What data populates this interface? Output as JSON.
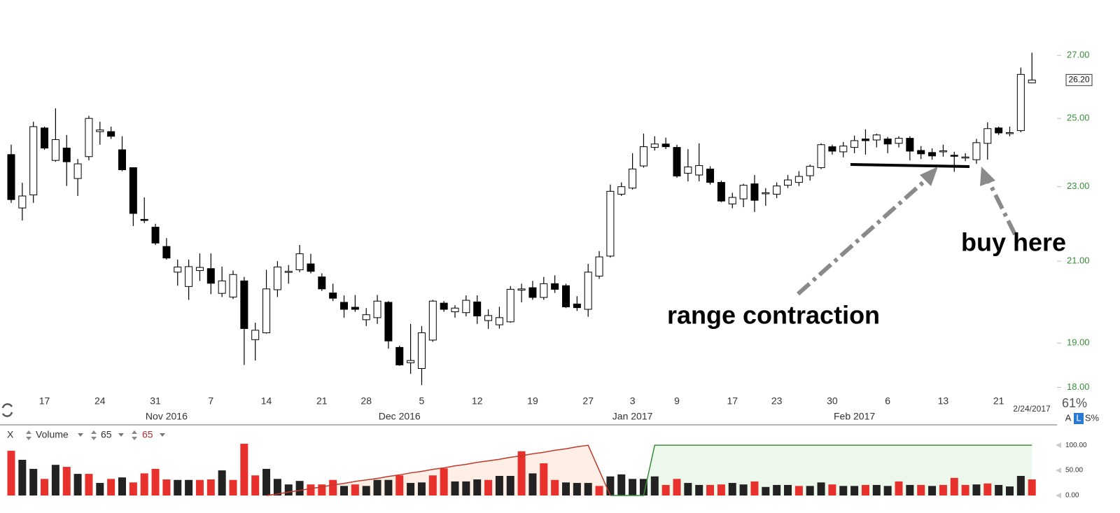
{
  "chart_data": {
    "type": "candlestick",
    "x": [
      "2016-10-12",
      "2016-10-13",
      "2016-10-14",
      "2016-10-17",
      "2016-10-18",
      "2016-10-19",
      "2016-10-20",
      "2016-10-21",
      "2016-10-24",
      "2016-10-25",
      "2016-10-26",
      "2016-10-27",
      "2016-10-28",
      "2016-10-31",
      "2016-11-01",
      "2016-11-02",
      "2016-11-03",
      "2016-11-04",
      "2016-11-07",
      "2016-11-08",
      "2016-11-09",
      "2016-11-10",
      "2016-11-11",
      "2016-11-14",
      "2016-11-15",
      "2016-11-16",
      "2016-11-17",
      "2016-11-18",
      "2016-11-21",
      "2016-11-22",
      "2016-11-23",
      "2016-11-25",
      "2016-11-28",
      "2016-11-29",
      "2016-11-30",
      "2016-12-01",
      "2016-12-02",
      "2016-12-05",
      "2016-12-06",
      "2016-12-07",
      "2016-12-08",
      "2016-12-09",
      "2016-12-12",
      "2016-12-13",
      "2016-12-14",
      "2016-12-15",
      "2016-12-16",
      "2016-12-19",
      "2016-12-20",
      "2016-12-21",
      "2016-12-22",
      "2016-12-23",
      "2016-12-27",
      "2016-12-28",
      "2016-12-29",
      "2016-12-30",
      "2017-01-03",
      "2017-01-04",
      "2017-01-05",
      "2017-01-06",
      "2017-01-09",
      "2017-01-10",
      "2017-01-11",
      "2017-01-12",
      "2017-01-13",
      "2017-01-17",
      "2017-01-18",
      "2017-01-19",
      "2017-01-20",
      "2017-01-23",
      "2017-01-24",
      "2017-01-25",
      "2017-01-26",
      "2017-01-27",
      "2017-01-30",
      "2017-01-31",
      "2017-02-01",
      "2017-02-02",
      "2017-02-03",
      "2017-02-06",
      "2017-02-07",
      "2017-02-08",
      "2017-02-09",
      "2017-02-10",
      "2017-02-13",
      "2017-02-14",
      "2017-02-15",
      "2017-02-16",
      "2017-02-17",
      "2017-02-21",
      "2017-02-22",
      "2017-02-23",
      "2017-02-24"
    ],
    "open": [
      23.92,
      22.41,
      22.77,
      24.71,
      23.75,
      24.11,
      23.23,
      23.86,
      24.6,
      24.6,
      24.06,
      23.54,
      22.1,
      21.89,
      21.38,
      20.72,
      20.36,
      20.76,
      20.81,
      20.19,
      20.1,
      20.5,
      19.08,
      19.24,
      20.28,
      20.72,
      20.78,
      20.93,
      20.6,
      20.2,
      19.97,
      19.85,
      19.55,
      19.6,
      19.97,
      18.9,
      18.55,
      18.42,
      19.07,
      19.95,
      19.74,
      19.72,
      19.98,
      19.53,
      19.43,
      19.5,
      20.27,
      20.33,
      20.09,
      20.43,
      20.38,
      19.93,
      19.8,
      20.62,
      21.13,
      22.79,
      22.96,
      23.59,
      24.13,
      24.23,
      24.13,
      23.38,
      23.33,
      23.5,
      23.12,
      22.52,
      22.66,
      23.08,
      22.8,
      22.79,
      23.04,
      23.12,
      23.31,
      23.54,
      24.15,
      24.0,
      24.13,
      24.38,
      24.35,
      24.38,
      24.25,
      24.4,
      24.04,
      23.98,
      24.02,
      23.9,
      23.84,
      23.77,
      24.25,
      24.71,
      24.55,
      24.63,
      26.11
    ],
    "high": [
      24.21,
      23.11,
      24.9,
      24.75,
      25.31,
      24.5,
      23.79,
      25.08,
      24.9,
      24.75,
      24.46,
      23.54,
      22.7,
      21.98,
      21.6,
      21.04,
      21.04,
      21.2,
      21.2,
      20.86,
      20.76,
      20.6,
      19.48,
      20.78,
      21.0,
      20.9,
      21.42,
      21.19,
      20.69,
      20.43,
      20.14,
      20.15,
      19.83,
      20.15,
      20.0,
      18.94,
      19.45,
      19.4,
      20.03,
      20.0,
      19.9,
      20.14,
      20.14,
      19.8,
      19.86,
      20.37,
      20.43,
      20.5,
      20.6,
      20.64,
      20.43,
      20.12,
      20.93,
      21.26,
      23.06,
      23.12,
      23.96,
      24.54,
      24.46,
      24.42,
      24.21,
      24.08,
      24.25,
      23.58,
      23.17,
      22.83,
      23.08,
      23.33,
      22.96,
      23.12,
      23.33,
      23.44,
      23.63,
      24.25,
      24.21,
      24.29,
      24.48,
      24.67,
      24.54,
      24.44,
      24.46,
      24.46,
      24.17,
      24.1,
      24.21,
      24.0,
      23.96,
      24.38,
      24.88,
      24.75,
      24.75,
      26.6,
      27.09
    ],
    "low": [
      22.55,
      22.07,
      22.55,
      24.06,
      23.71,
      23.02,
      22.74,
      23.75,
      24.21,
      24.38,
      23.44,
      21.92,
      22.0,
      21.42,
      21.04,
      20.38,
      20.03,
      20.5,
      20.17,
      20.1,
      20.05,
      18.5,
      18.6,
      19.22,
      20.1,
      20.43,
      20.72,
      20.69,
      20.25,
      20.0,
      19.6,
      19.74,
      19.4,
      19.45,
      18.87,
      18.48,
      18.3,
      18.05,
      19.03,
      19.74,
      19.6,
      19.63,
      19.45,
      19.33,
      19.34,
      19.48,
      19.97,
      20.03,
      20.03,
      20.2,
      19.83,
      19.76,
      19.62,
      20.55,
      21.09,
      22.74,
      22.92,
      23.54,
      24.04,
      24.08,
      23.25,
      23.15,
      23.15,
      23.06,
      22.57,
      22.4,
      22.43,
      22.3,
      22.47,
      22.68,
      22.96,
      23.02,
      23.17,
      23.5,
      23.92,
      23.84,
      23.96,
      23.92,
      24.13,
      23.96,
      24.13,
      23.75,
      23.79,
      23.77,
      23.86,
      23.42,
      23.73,
      23.65,
      23.77,
      24.5,
      24.46,
      24.58,
      26.11
    ],
    "close": [
      22.64,
      22.74,
      24.75,
      24.11,
      24.36,
      23.71,
      23.65,
      25.0,
      24.65,
      24.46,
      23.48,
      22.26,
      22.07,
      21.47,
      21.08,
      20.85,
      20.86,
      20.84,
      20.44,
      20.5,
      20.66,
      19.34,
      19.3,
      20.3,
      20.85,
      20.74,
      21.19,
      20.74,
      20.3,
      20.07,
      19.8,
      19.8,
      19.67,
      20.0,
      19.05,
      18.5,
      18.6,
      19.24,
      20.0,
      19.8,
      19.83,
      20.02,
      19.64,
      19.65,
      19.6,
      20.29,
      20.3,
      20.09,
      20.43,
      20.29,
      19.86,
      19.84,
      20.72,
      21.11,
      22.87,
      23.0,
      23.5,
      24.15,
      24.23,
      24.15,
      23.3,
      23.56,
      23.6,
      23.12,
      22.6,
      22.7,
      23.04,
      22.62,
      22.83,
      23.02,
      23.19,
      23.29,
      23.58,
      24.21,
      24.02,
      24.17,
      24.33,
      24.33,
      24.5,
      24.23,
      24.4,
      24.02,
      23.94,
      23.88,
      24.03,
      23.89,
      23.85,
      24.27,
      24.69,
      24.56,
      24.57,
      26.38,
      26.2
    ],
    "up_color": "#ffffff",
    "down_color": "#000000",
    "log_scale": true,
    "ylim": [
      17.9,
      28.4
    ],
    "yticks": [
      {
        "value": 18,
        "label": "18.00"
      },
      {
        "value": 19,
        "label": "19.00"
      },
      {
        "value": 21,
        "label": "21.00"
      },
      {
        "value": 23,
        "label": "23.00"
      },
      {
        "value": 25,
        "label": "25.00"
      },
      {
        "value": 27,
        "label": "27.00"
      }
    ],
    "last_price": {
      "value": 26.2,
      "label": "26.20"
    },
    "xticks": [
      {
        "value": "2016-10-17",
        "label": "17"
      },
      {
        "value": "2016-10-24",
        "label": "24"
      },
      {
        "value": "2016-10-31",
        "label": "31"
      },
      {
        "value": "2016-11-07",
        "label": "7"
      },
      {
        "value": "2016-11-14",
        "label": "14"
      },
      {
        "value": "2016-11-21",
        "label": "21"
      },
      {
        "value": "2016-11-28",
        "label": "28"
      },
      {
        "value": "2016-12-05",
        "label": "5"
      },
      {
        "value": "2016-12-12",
        "label": "12"
      },
      {
        "value": "2016-12-19",
        "label": "19"
      },
      {
        "value": "2016-12-27",
        "label": "27"
      },
      {
        "value": "2017-01-03",
        "label": "3"
      },
      {
        "value": "2017-01-09",
        "label": "9"
      },
      {
        "value": "2017-01-17",
        "label": "17"
      },
      {
        "value": "2017-01-23",
        "label": "23"
      },
      {
        "value": "2017-01-30",
        "label": "30"
      },
      {
        "value": "2017-02-06",
        "label": "6"
      },
      {
        "value": "2017-02-13",
        "label": "13"
      },
      {
        "value": "2017-02-21",
        "label": "21"
      }
    ],
    "month_ticks": [
      {
        "value": "2016-11-01",
        "label": "Nov 2016"
      },
      {
        "value": "2016-12-01",
        "label": "Dec 2016"
      },
      {
        "value": "2017-01-03",
        "label": "Jan 2017"
      },
      {
        "value": "2017-02-01",
        "label": "Feb 2017"
      }
    ],
    "date_label": "2/24/2017",
    "annotations": [
      "range contraction",
      "buy here"
    ],
    "volume": {
      "name": "Volume",
      "values": [
        89,
        71,
        53,
        33,
        61,
        57,
        43,
        43,
        25,
        33,
        36,
        26,
        44,
        53,
        32,
        31,
        31,
        31,
        32,
        50,
        31,
        103,
        40,
        53,
        33,
        22,
        29,
        22,
        22,
        31,
        19,
        22,
        19,
        31,
        31,
        40,
        25,
        26,
        40,
        54,
        28,
        28,
        32,
        31,
        39,
        39,
        88,
        44,
        64,
        31,
        26,
        25,
        25,
        19,
        38,
        42,
        33,
        33,
        38,
        21,
        33,
        25,
        21,
        21,
        22,
        25,
        22,
        28,
        17,
        21,
        21,
        19,
        19,
        26,
        22,
        19,
        19,
        21,
        21,
        19,
        28,
        21,
        21,
        19,
        21,
        35,
        21,
        22,
        24,
        21,
        18,
        39,
        32
      ],
      "colors": [
        "#e8302c",
        "#222222",
        "#222222",
        "#e8302c",
        "#222222",
        "#e8302c",
        "#222222",
        "#e8302c",
        "#222222",
        "#e8302c",
        "#222222",
        "#e8302c",
        "#e8302c",
        "#e8302c",
        "#e8302c",
        "#222222",
        "#222222",
        "#e8302c",
        "#e8302c",
        "#222222",
        "#e8302c",
        "#e8302c",
        "#e8302c",
        "#222222",
        "#222222",
        "#222222",
        "#222222",
        "#e8302c",
        "#e8302c",
        "#e8302c",
        "#222222",
        "#e8302c",
        "#222222",
        "#222222",
        "#222222",
        "#e8302c",
        "#222222",
        "#222222",
        "#e8302c",
        "#e8302c",
        "#222222",
        "#222222",
        "#222222",
        "#e8302c",
        "#222222",
        "#222222",
        "#e8302c",
        "#222222",
        "#e8302c",
        "#e8302c",
        "#222222",
        "#222222",
        "#222222",
        "#e8302c",
        "#222222",
        "#222222",
        "#222222",
        "#222222",
        "#222222",
        "#e8302c",
        "#e8302c",
        "#222222",
        "#222222",
        "#e8302c",
        "#e8302c",
        "#222222",
        "#222222",
        "#e8302c",
        "#222222",
        "#222222",
        "#222222",
        "#e8302c",
        "#222222",
        "#222222",
        "#e8302c",
        "#222222",
        "#222222",
        "#e8302c",
        "#222222",
        "#222222",
        "#e8302c",
        "#222222",
        "#e8302c",
        "#222222",
        "#e8302c",
        "#e8302c",
        "#e8302c",
        "#222222",
        "#e8302c",
        "#222222",
        "#222222",
        "#222222",
        "#e8302c"
      ],
      "ylim": [
        0,
        110
      ],
      "yticks": [
        {
          "value": 0,
          "label": "0.00"
        },
        {
          "value": 50,
          "label": "50.00"
        },
        {
          "value": 100,
          "label": "100.00"
        }
      ]
    },
    "indicator": {
      "params": [
        "65",
        "65"
      ],
      "series": [
        {
          "color": "#c0392b",
          "fill": "#fdeee6",
          "values": [
            null,
            null,
            null,
            null,
            null,
            null,
            null,
            null,
            null,
            null,
            null,
            null,
            null,
            null,
            null,
            null,
            null,
            null,
            null,
            null,
            null,
            null,
            null,
            0,
            3,
            7,
            10,
            14,
            17,
            21,
            24,
            28,
            31,
            34,
            38,
            41,
            45,
            48,
            52,
            55,
            59,
            62,
            66,
            69,
            72,
            76,
            79,
            83,
            86,
            90,
            93,
            97,
            100,
            50,
            0,
            null,
            null,
            null,
            null,
            null,
            null,
            null,
            null,
            null,
            null,
            null,
            null,
            null,
            null,
            null,
            null,
            null,
            null,
            null,
            null,
            null,
            null,
            null,
            null,
            null,
            null,
            null,
            null,
            null,
            null,
            null,
            null,
            null,
            null,
            null,
            null,
            null,
            null
          ]
        },
        {
          "color": "#3a8c3a",
          "fill": "#ecf8ec",
          "values": [
            null,
            null,
            null,
            null,
            null,
            null,
            null,
            null,
            null,
            null,
            null,
            null,
            null,
            null,
            null,
            null,
            null,
            null,
            null,
            null,
            null,
            null,
            null,
            null,
            null,
            null,
            null,
            null,
            null,
            null,
            null,
            null,
            null,
            null,
            null,
            null,
            null,
            null,
            null,
            null,
            null,
            null,
            null,
            null,
            null,
            null,
            null,
            null,
            null,
            null,
            null,
            null,
            null,
            null,
            0,
            0,
            0,
            0,
            100,
            100,
            100,
            100,
            100,
            100,
            100,
            100,
            100,
            100,
            100,
            100,
            100,
            100,
            100,
            100,
            100,
            100,
            100,
            100,
            100,
            100,
            100,
            100,
            100,
            100,
            100,
            100,
            100,
            100,
            100,
            100,
            100,
            100,
            100
          ]
        }
      ]
    },
    "ui": {
      "close": "X",
      "zoom": "61%",
      "buttons": [
        "A",
        "L",
        "S%"
      ]
    }
  }
}
